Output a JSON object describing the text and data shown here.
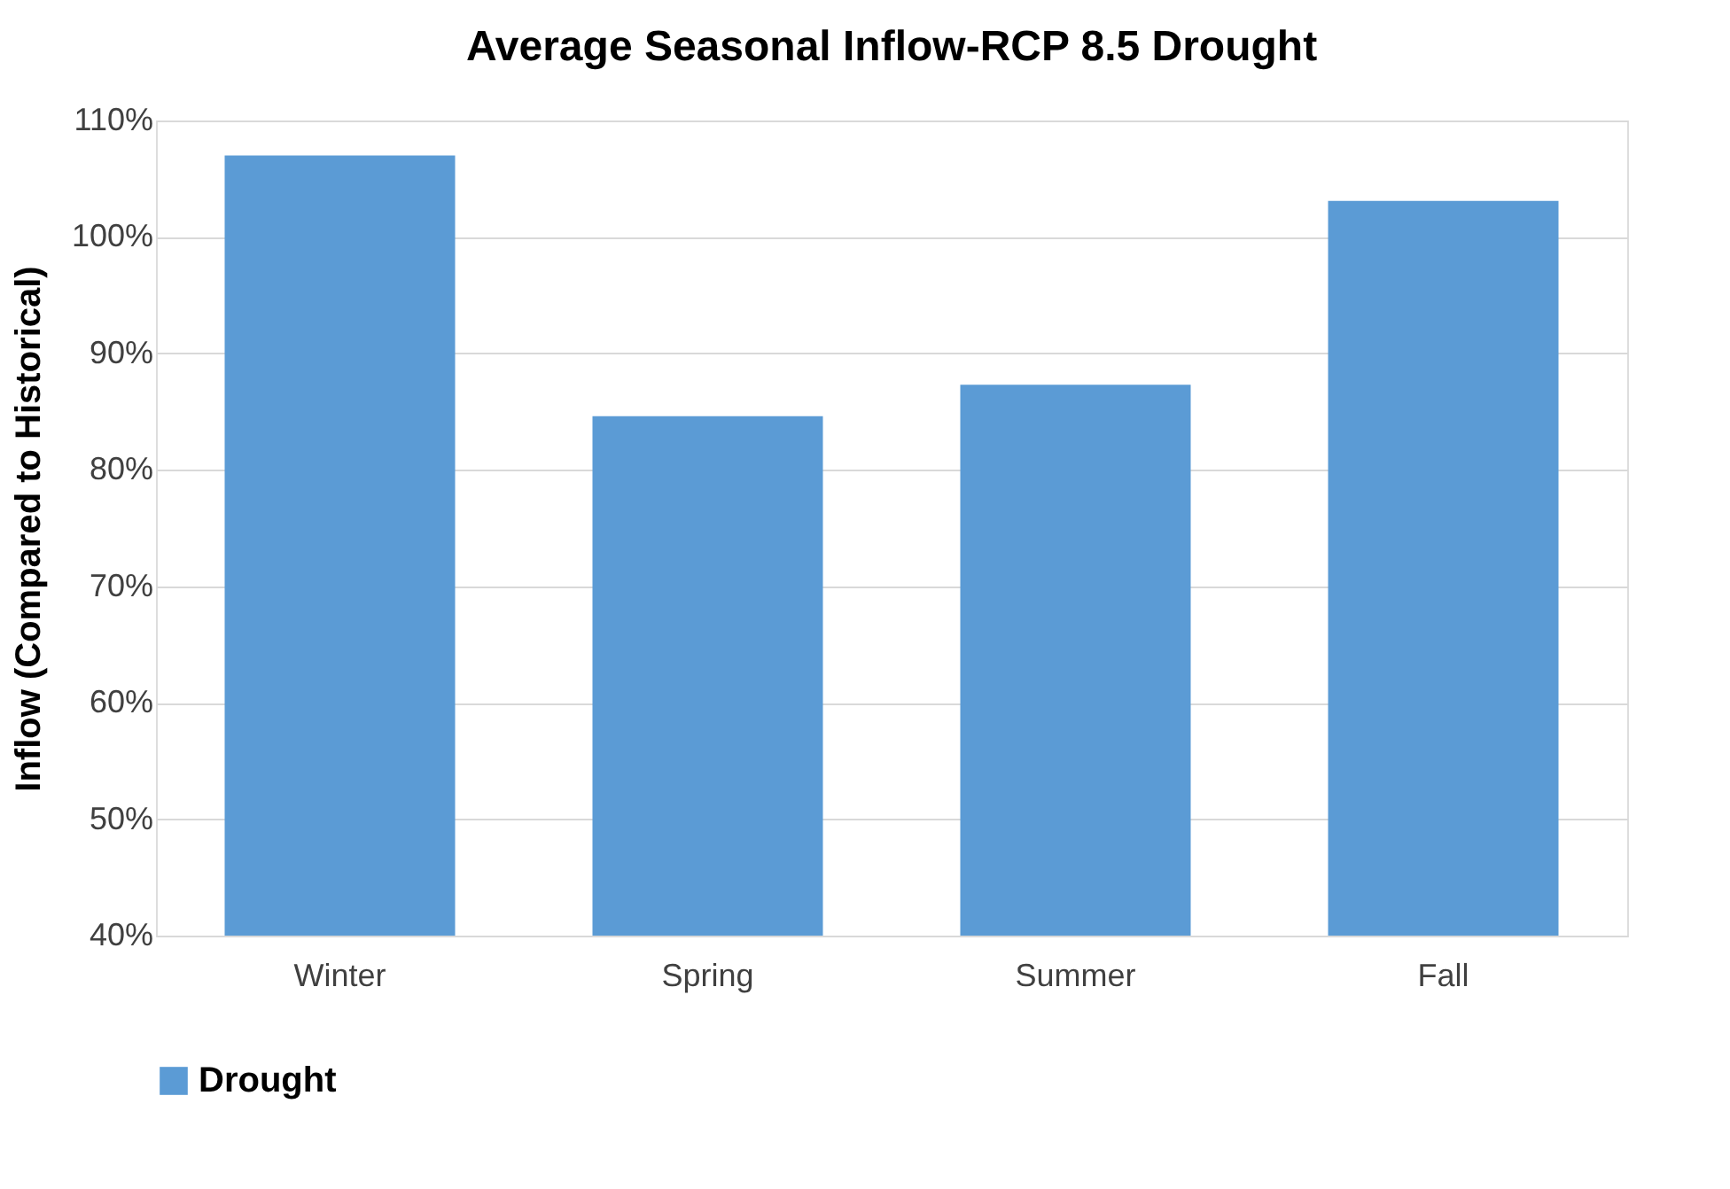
{
  "chart_data": {
    "type": "bar",
    "title": "Average Seasonal Inflow-RCP 8.5 Drought",
    "ylabel": "Inflow (Compared to Historical)",
    "categories": [
      "Winter",
      "Spring",
      "Summer",
      "Fall"
    ],
    "series": [
      {
        "name": "Drought",
        "color": "#5b9bd5",
        "values": [
          107,
          84.6,
          87.3,
          103.1
        ]
      }
    ],
    "ylim": [
      40,
      110
    ],
    "yticks": [
      {
        "value": 40,
        "label": "40%"
      },
      {
        "value": 50,
        "label": "50%"
      },
      {
        "value": 60,
        "label": "60%"
      },
      {
        "value": 70,
        "label": "70%"
      },
      {
        "value": 80,
        "label": "80%"
      },
      {
        "value": 90,
        "label": "90%"
      },
      {
        "value": 100,
        "label": "100%"
      },
      {
        "value": 110,
        "label": "110%"
      }
    ],
    "grid": "y",
    "legend": "bottom"
  }
}
